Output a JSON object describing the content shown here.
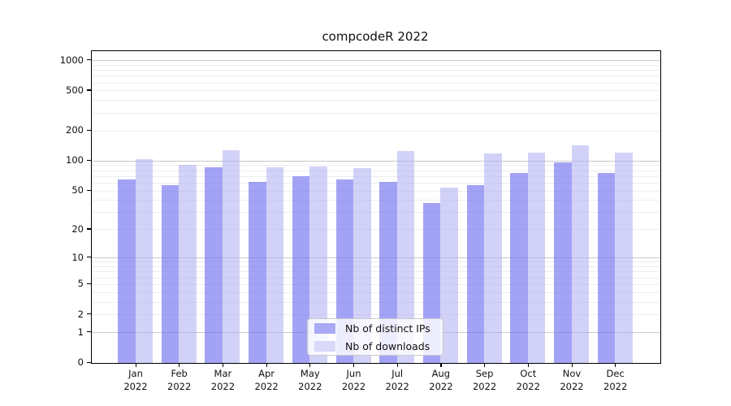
{
  "chart_data": {
    "type": "bar",
    "title": "compcodeR 2022",
    "x_months": [
      "Jan",
      "Feb",
      "Mar",
      "Apr",
      "May",
      "Jun",
      "Jul",
      "Aug",
      "Sep",
      "Oct",
      "Nov",
      "Dec"
    ],
    "x_year": "2022",
    "series": [
      {
        "name": "Nb of distinct IPs",
        "color": "#a9a9f6",
        "fill": "rgba(118,118,240,0.67)",
        "values": [
          65,
          57,
          86,
          62,
          70,
          65,
          62,
          38,
          57,
          76,
          96,
          76
        ]
      },
      {
        "name": "Nb of downloads",
        "color": "#d9d9f9",
        "fill": "rgba(173,173,242,0.55)",
        "values": [
          105,
          92,
          128,
          86,
          89,
          85,
          125,
          54,
          118,
          121,
          143,
          121
        ]
      }
    ],
    "y_ticks": [
      0,
      1,
      2,
      5,
      10,
      20,
      50,
      100,
      200,
      500,
      1000
    ],
    "y_scale": "log1p",
    "ylim": [
      0,
      1250
    ],
    "grid": "horizontal",
    "grid_major_color": "#c9c9c9",
    "grid_minor_color": "#ededed",
    "legend_position": "lower center"
  }
}
